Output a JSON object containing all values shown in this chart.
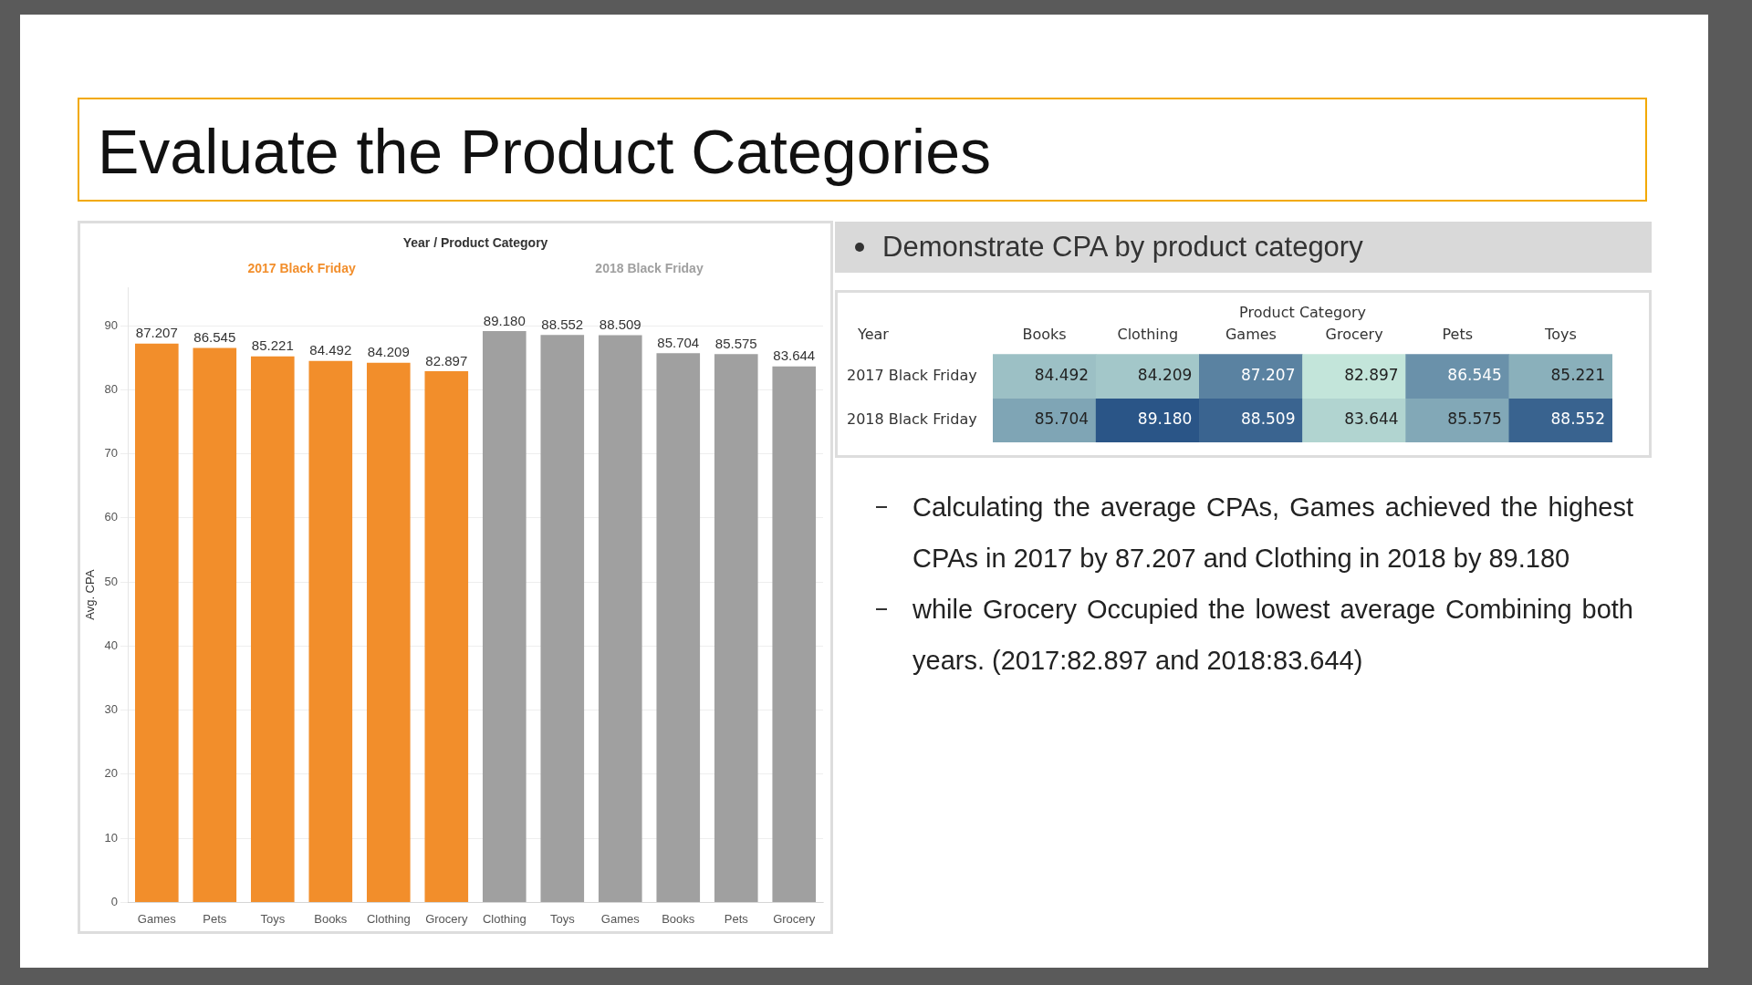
{
  "chart_data": [
    {
      "type": "bar",
      "title": "Evaluate the Product Categories",
      "legend_title": "Year / Product Category",
      "ylabel": "Avg. CPA",
      "categories": [
        "Games",
        "Pets",
        "Toys",
        "Books",
        "Clothing",
        "Grocery",
        "Clothing",
        "Toys",
        "Games",
        "Books",
        "Pets",
        "Grocery"
      ],
      "series": [
        {
          "name": "2017 Black Friday",
          "color": "#f28e2b",
          "values": [
            87.207,
            86.545,
            85.221,
            84.492,
            84.209,
            82.897,
            null,
            null,
            null,
            null,
            null,
            null
          ],
          "value_labels": [
            "87.207",
            "86.545",
            "85.221",
            "84.492",
            "84.209",
            "82.897",
            null,
            null,
            null,
            null,
            null,
            null
          ]
        },
        {
          "name": "2018 Black Friday",
          "color": "#a0a0a0",
          "values": [
            null,
            null,
            null,
            null,
            null,
            null,
            89.18,
            88.552,
            88.509,
            85.704,
            85.575,
            83.644
          ],
          "value_labels": [
            null,
            null,
            null,
            null,
            null,
            null,
            "89.180",
            "88.552",
            "88.509",
            "85.704",
            "85.575",
            "83.644"
          ]
        }
      ],
      "ylim": [
        0,
        96
      ],
      "yticks": [
        0,
        10,
        20,
        30,
        40,
        50,
        60,
        70,
        80,
        90
      ],
      "grid": "y",
      "legend": false
    },
    {
      "type": "heatmap",
      "title": "Demonstrate CPA by product category",
      "xlabel": "Product Category",
      "ylabel": "Year",
      "categories": [
        "Books",
        "Clothing",
        "Games",
        "Grocery",
        "Pets",
        "Toys"
      ],
      "y_categories": [
        "2017 Black Friday",
        "2018 Black Friday"
      ],
      "cells": [
        [
          84.492,
          84.209,
          87.207,
          82.897,
          86.545,
          85.221
        ],
        [
          85.704,
          89.18,
          88.509,
          83.644,
          85.575,
          88.552
        ]
      ],
      "cell_labels": [
        [
          "84.492",
          "84.209",
          "87.207",
          "82.897",
          "86.545",
          "85.221"
        ],
        [
          "85.704",
          "89.180",
          "88.509",
          "83.644",
          "85.575",
          "88.552"
        ]
      ],
      "annotations": [
        "Calculating the average CPAs, Games achieved the highest CPAs in 2017 by 87.207 and Clothing in 2018 by 89.180",
        "while Grocery Occupied the lowest average Combining both years. (2017:82.897 and 2018:83.644)"
      ]
    }
  ]
}
